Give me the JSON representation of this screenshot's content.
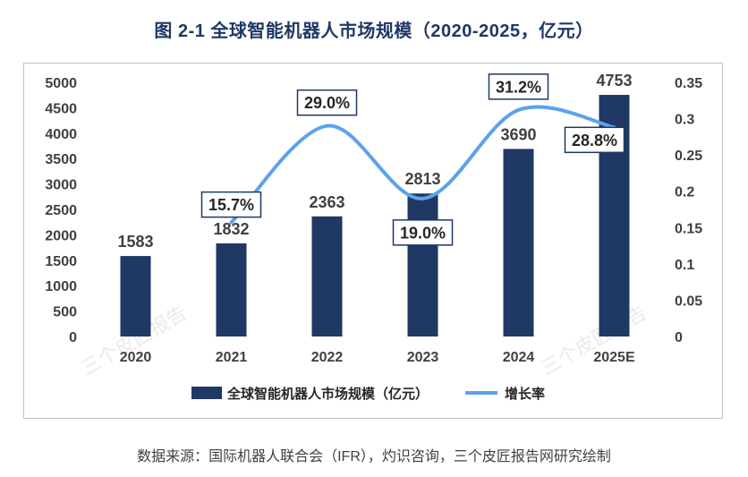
{
  "title": "图 2-1  全球智能机器人市场规模（2020-2025，亿元）",
  "source": "数据来源：国际机器人联合会（IFR），灼识咨询，三个皮匠报告网研究绘制",
  "watermark": "三个皮匠报告",
  "colors": {
    "bar": "#1f3864",
    "line": "#5ba3ec",
    "title": "#1f3864",
    "label_box": "#1f3864"
  },
  "chart_data": {
    "type": "bar+line",
    "categories": [
      "2020",
      "2021",
      "2022",
      "2023",
      "2024",
      "2025E"
    ],
    "series": [
      {
        "name": "全球智能机器人市场规模（亿元）",
        "type": "bar",
        "axis": "left",
        "values": [
          1583,
          1832,
          2363,
          2813,
          3690,
          4753
        ],
        "labels": [
          "1583",
          "1832",
          "2363",
          "2813",
          "3690",
          "4753"
        ]
      },
      {
        "name": "增长率",
        "type": "line",
        "axis": "right",
        "values": [
          null,
          0.157,
          0.29,
          0.19,
          0.312,
          0.288
        ],
        "labels": [
          "",
          "15.7%",
          "29.0%",
          "19.0%",
          "31.2%",
          "28.8%"
        ]
      }
    ],
    "left_axis": {
      "min": 0,
      "max": 5000,
      "ticks": [
        "0",
        "500",
        "1000",
        "1500",
        "2000",
        "2500",
        "3000",
        "3500",
        "4000",
        "4500",
        "5000"
      ]
    },
    "right_axis": {
      "min": 0,
      "max": 0.35,
      "ticks": [
        "0",
        "0.05",
        "0.1",
        "0.15",
        "0.2",
        "0.25",
        "0.3",
        "0.35"
      ]
    },
    "legend_position": "bottom-center",
    "grid": false
  }
}
